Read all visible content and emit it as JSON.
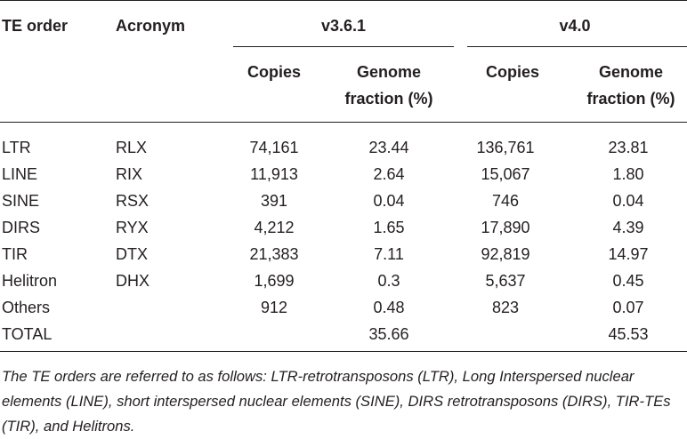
{
  "table": {
    "header": {
      "te_order": "TE order",
      "acronym": "Acronym",
      "group1": "v3.6.1",
      "group2": "v4.0",
      "copies1": "Copies",
      "fraction1": [
        "Genome",
        "fraction (%)"
      ],
      "copies2": "Copies",
      "fraction2": [
        "Genome",
        "fraction (%)"
      ]
    },
    "rows": [
      [
        "LTR",
        "RLX",
        "74,161",
        "23.44",
        "136,761",
        "23.81"
      ],
      [
        "LINE",
        "RIX",
        "11,913",
        "2.64",
        "15,067",
        "1.80"
      ],
      [
        "SINE",
        "RSX",
        "391",
        "0.04",
        "746",
        "0.04"
      ],
      [
        "DIRS",
        "RYX",
        "4,212",
        "1.65",
        "17,890",
        "4.39"
      ],
      [
        "TIR",
        "DTX",
        "21,383",
        "7.11",
        "92,819",
        "14.97"
      ],
      [
        "Helitron",
        "DHX",
        "1,699",
        "0.3",
        "5,637",
        "0.45"
      ],
      [
        "Others",
        null,
        "912",
        "0.48",
        "823",
        "0.07"
      ],
      [
        "TOTAL",
        null,
        null,
        "35.66",
        null,
        "45.53"
      ]
    ],
    "footnote": "The TE orders are referred to as follows: LTR-retrotransposons (LTR), Long Interspersed nuclear elements (LINE), short interspersed nuclear elements (SINE), DIRS retrotransposons (DIRS), TIR-TEs (TIR), and Helitrons."
  }
}
